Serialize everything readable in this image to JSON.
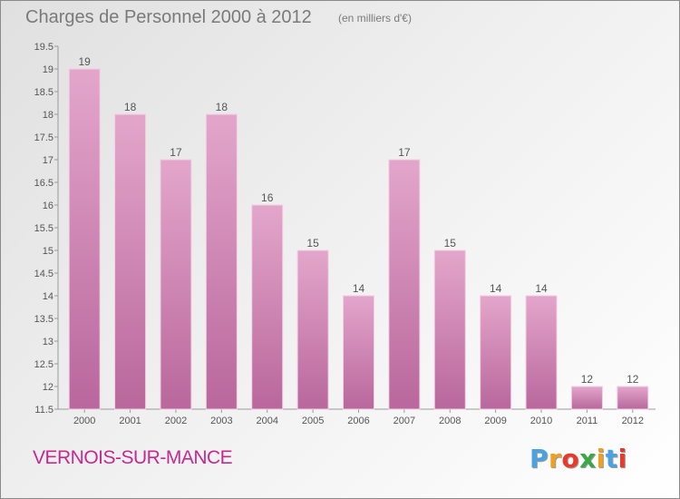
{
  "header": {
    "title": "Charges de Personnel 2000 à 2012",
    "subtitle": "(en milliers d'€)"
  },
  "footer": {
    "commune": "VERNOIS-SUR-MANCE",
    "logo_letters": [
      "P",
      "r",
      "o",
      "x",
      "i",
      "t",
      "i"
    ],
    "logo_colors": [
      "#4aa3df",
      "#f0a020",
      "#e8392a",
      "#39a845",
      "#f0a020",
      "#4aa3df",
      "#e8392a"
    ]
  },
  "chart_data": {
    "type": "bar",
    "title": "Charges de Personnel 2000 à 2012",
    "subtitle": "(en milliers d'€)",
    "categories": [
      "2000",
      "2001",
      "2002",
      "2003",
      "2004",
      "2005",
      "2006",
      "2007",
      "2008",
      "2009",
      "2010",
      "2011",
      "2012"
    ],
    "values": [
      19,
      18,
      17,
      18,
      16,
      15,
      14,
      17,
      15,
      14,
      14,
      12,
      12
    ],
    "data_labels": [
      "19",
      "18",
      "17",
      "18",
      "16",
      "15",
      "14",
      "17",
      "15",
      "14",
      "14",
      "12",
      "12"
    ],
    "ylim": [
      11.5,
      19.5
    ],
    "y_ticks": [
      11.5,
      12,
      12.5,
      13,
      13.5,
      14,
      14.5,
      15,
      15.5,
      16,
      16.5,
      17,
      17.5,
      18,
      18.5,
      19,
      19.5
    ],
    "y_tick_labels": [
      "11.5",
      "12",
      "12.5",
      "13",
      "13.5",
      "14",
      "14.5",
      "15",
      "15.5",
      "16",
      "16.5",
      "17",
      "17.5",
      "18",
      "18.5",
      "19",
      "19.5"
    ],
    "grid": false,
    "colors": {
      "bar_top": "#e3a6cb",
      "bar_bottom": "#b9679c",
      "bar_edge": "#f2cfe3",
      "axis": "#9a9a9a",
      "text": "#555555"
    }
  }
}
